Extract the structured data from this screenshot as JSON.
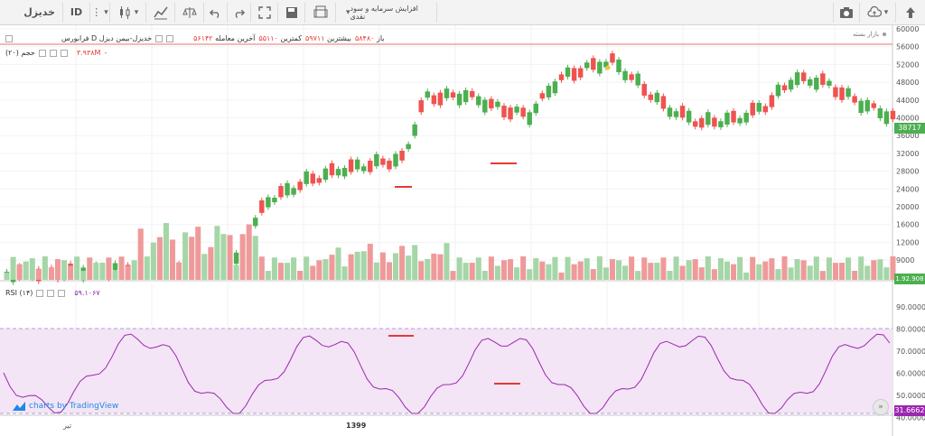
{
  "toolbar": {
    "symbol": "خدیزل",
    "id_label": "ID",
    "title": "افزایش سرمایه و سود نقدی",
    "icons": [
      "more-icon",
      "candlestick-icon",
      "indicators-icon",
      "compare-icon",
      "undo-icon",
      "redo-icon",
      "fullscreen-icon",
      "save-icon",
      "load-layout-icon",
      "camera-icon",
      "cloud-icon",
      "upload-icon"
    ]
  },
  "main": {
    "symbol_line": "فرابورس D خدیزل-بیمن دیزل",
    "stats": [
      {
        "label": "آخرین معامله",
        "value": "۵۶۱۴۲"
      },
      {
        "label": "کمترین",
        "value": "۵۵۱۱۰"
      },
      {
        "label": "بیشترین",
        "value": "۵۹۷۱۱"
      },
      {
        "label": "باز",
        "value": "۵۸۴۸۰"
      }
    ],
    "market_status": "بازار بسته",
    "volume_label": "حجم (۲۰)",
    "volume_value": "۳.۹۳۸M",
    "rsi_label": "RSI (۱۴)",
    "rsi_value": "۵۹.۱۰۶۷",
    "price_badge": "38717",
    "volume_badge": "1.92.908",
    "rsi_badge": "31.6662",
    "price_ticks": [
      "60000",
      "56000",
      "52000",
      "48000",
      "44000",
      "40000",
      "36000",
      "32000",
      "28000",
      "24000",
      "20000",
      "16000",
      "12000",
      "9000"
    ],
    "rsi_ticks": [
      "90.0000",
      "80.0000",
      "70.0000",
      "60.0000",
      "50.0000",
      "40.0000"
    ],
    "time_labels": [
      {
        "text": "تیر"
      },
      {
        "text": "1399"
      }
    ],
    "tradingview_label": "charts by TradingView",
    "colors": {
      "up": "#4caf50",
      "down": "#ef5350",
      "rsi": "#9c27b0",
      "rsi_fill": "#f3e5f5",
      "ref_line": "#e57373"
    }
  }
}
